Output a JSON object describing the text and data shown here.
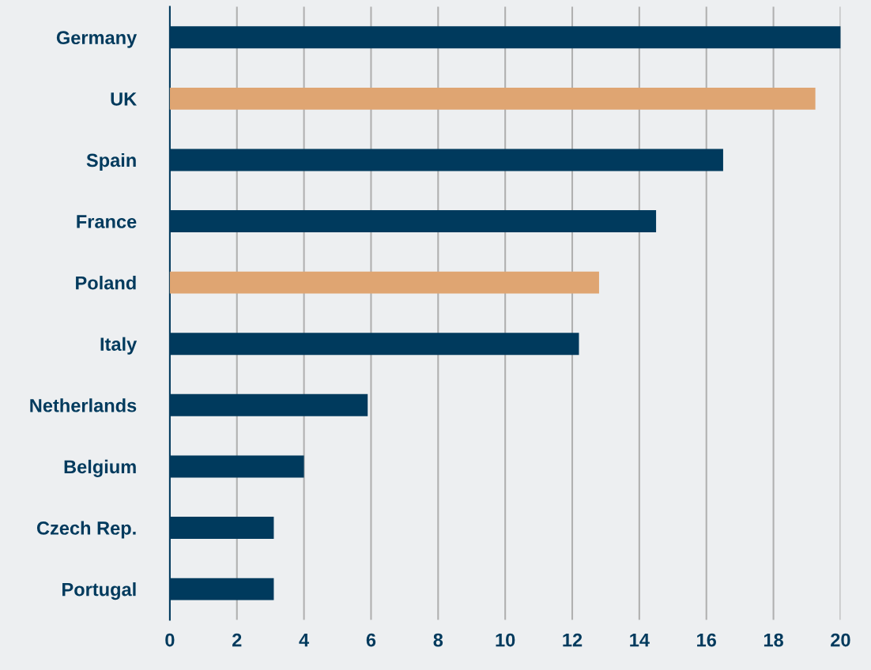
{
  "chart_data": {
    "type": "bar",
    "orientation": "horizontal",
    "categories": [
      "Germany",
      "UK",
      "Spain",
      "France",
      "Poland",
      "Italy",
      "Netherlands",
      "Belgium",
      "Czech Rep.",
      "Portugal"
    ],
    "values": [
      20,
      19.25,
      16.5,
      14.5,
      12.8,
      12.2,
      5.9,
      4.0,
      3.1,
      3.1
    ],
    "colors": [
      "#003a5d",
      "#dfa572",
      "#003a5d",
      "#003a5d",
      "#dfa572",
      "#003a5d",
      "#003a5d",
      "#003a5d",
      "#003a5d",
      "#003a5d"
    ],
    "xlim": [
      0,
      20
    ],
    "xticks": [
      0,
      2,
      4,
      6,
      8,
      10,
      12,
      14,
      16,
      18,
      20
    ],
    "grid": "x"
  }
}
